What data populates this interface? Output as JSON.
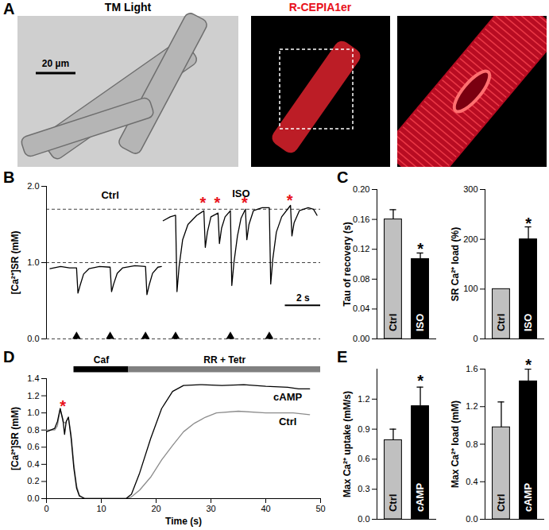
{
  "panel_a": {
    "panel": "A",
    "titles": [
      "TM Light",
      "R-CEPIA1er"
    ],
    "scale_bar": {
      "length": 20,
      "label": "20 µm"
    }
  },
  "chart_data": [
    {
      "panel": "B",
      "type": "line",
      "ylabel": "[Ca²⁺]SR (mM)",
      "xlim": [
        0,
        15.5
      ],
      "ylim": [
        0,
        2
      ],
      "yticks": [
        {
          "value": 0,
          "label": "0.0"
        },
        {
          "value": 1,
          "label": "1.0"
        },
        {
          "value": 2,
          "label": "2.0"
        }
      ],
      "tick_labels": "y",
      "series": [
        {
          "name": "Ctrl",
          "color": "#000000",
          "x": [
            0.2,
            0.8,
            1.3,
            1.7,
            1.78,
            1.9,
            2.1,
            2.4,
            3.0,
            3.6,
            3.68,
            3.8,
            4.0,
            4.3,
            5.0,
            5.6,
            5.68,
            5.8,
            6.0,
            6.3,
            6.5
          ],
          "values": [
            0.92,
            0.95,
            0.93,
            0.93,
            0.6,
            0.7,
            0.85,
            0.92,
            0.95,
            0.94,
            0.62,
            0.72,
            0.86,
            0.93,
            0.96,
            0.95,
            0.58,
            0.7,
            0.86,
            0.94,
            0.95
          ]
        },
        {
          "name": "ISO",
          "color": "#000000",
          "x": [
            6.6,
            7.0,
            7.3,
            7.38,
            7.5,
            7.7,
            8.0,
            8.5,
            8.9,
            8.98,
            9.1,
            9.3,
            9.7,
            9.78,
            9.9,
            10.1,
            10.4,
            10.48,
            10.6,
            10.8,
            11.0,
            11.25,
            11.33,
            11.45,
            11.7,
            12.2,
            12.6,
            12.68,
            12.8,
            13.0,
            13.3,
            13.8,
            13.88,
            14.0,
            14.3,
            14.8,
            15.1,
            15.3
          ],
          "values": [
            1.55,
            1.6,
            1.62,
            0.62,
            0.95,
            1.3,
            1.5,
            1.62,
            1.68,
            1.2,
            1.4,
            1.6,
            1.65,
            1.25,
            1.45,
            1.6,
            1.68,
            0.7,
            1.0,
            1.35,
            1.58,
            1.7,
            1.3,
            1.5,
            1.68,
            1.72,
            1.72,
            0.72,
            1.05,
            1.4,
            1.6,
            1.75,
            1.35,
            1.52,
            1.68,
            1.72,
            1.7,
            1.62
          ]
        }
      ],
      "reference_lines": [
        0,
        1,
        1.7
      ],
      "stimuli": [
        1.7,
        3.6,
        5.6,
        7.3,
        10.4,
        12.6
      ],
      "annotations": [
        {
          "text": "Ctrl",
          "x": 3.6,
          "y": 1.88,
          "color": "#000000"
        },
        {
          "text": "ISO",
          "x": 11.0,
          "y": 1.9,
          "color": "#000000"
        },
        {
          "text": "*",
          "x": 8.85,
          "y": 1.83,
          "color": "#e8101a"
        },
        {
          "text": "*",
          "x": 9.65,
          "y": 1.83,
          "color": "#e8101a"
        },
        {
          "text": "*",
          "x": 11.2,
          "y": 1.83,
          "color": "#e8101a"
        },
        {
          "text": "*",
          "x": 13.75,
          "y": 1.86,
          "color": "#e8101a"
        }
      ],
      "scale_bar": {
        "length": 2,
        "label": "2 s"
      }
    },
    {
      "panel": "C",
      "type": "bar",
      "ylabel": "Tau of recovery (s)",
      "categories": [
        "Ctrl",
        "ISO"
      ],
      "values": [
        0.16,
        0.107
      ],
      "errors": [
        0.013,
        0.008
      ],
      "colors": [
        "#c0c0c0",
        "#000000"
      ],
      "ylim": [
        0,
        0.2
      ],
      "yticks": [
        {
          "value": 0,
          "label": "0.00"
        },
        {
          "value": 0.04,
          "label": "0.04"
        },
        {
          "value": 0.08,
          "label": "0.08"
        },
        {
          "value": 0.12,
          "label": "0.12"
        },
        {
          "value": 0.16,
          "label": "0.16"
        },
        {
          "value": 0.2,
          "label": "0.20"
        }
      ],
      "tick_labels": "y",
      "annotations": [
        {
          "text": "*",
          "category": "ISO",
          "y": 0.125
        }
      ]
    },
    {
      "type": "bar",
      "ylabel": "SR Ca²⁺ load (%)",
      "categories": [
        "Ctrl",
        "ISO"
      ],
      "values": [
        100,
        200
      ],
      "errors": [
        null,
        25
      ],
      "colors": [
        "#c0c0c0",
        "#000000"
      ],
      "ylim": [
        0,
        300
      ],
      "yticks": [
        0,
        100,
        200,
        300
      ],
      "tick_labels": "y",
      "annotations": [
        {
          "text": "*",
          "category": "ISO",
          "y": 240
        }
      ]
    },
    {
      "panel": "D",
      "type": "line",
      "ylabel": "[Ca²⁺]SR (mM)",
      "xlabel": "Time (s)",
      "xlim": [
        0,
        50
      ],
      "ylim": [
        0,
        1.4
      ],
      "xticks": [
        0,
        10,
        20,
        30,
        40,
        50
      ],
      "yticks": [
        {
          "value": 0,
          "label": "0.0"
        },
        {
          "value": 0.2,
          "label": "0.2"
        },
        {
          "value": 0.4,
          "label": "0.4"
        },
        {
          "value": 0.6,
          "label": "0.6"
        },
        {
          "value": 0.8,
          "label": "0.8"
        },
        {
          "value": 1,
          "label": "1.0"
        },
        {
          "value": 1.2,
          "label": "1.2"
        },
        {
          "value": 1.4,
          "label": "1.4"
        }
      ],
      "series": [
        {
          "name": "Ctrl",
          "color": "#8c8c8c",
          "x": [
            0,
            1.5,
            2,
            2.5,
            3,
            3.5,
            4,
            4.5,
            5,
            5.5,
            6,
            7,
            14.5,
            15.5,
            17,
            19,
            21,
            23,
            25,
            27,
            29,
            31,
            35,
            40,
            45,
            48
          ],
          "values": [
            0.8,
            0.8,
            0.85,
            1.05,
            0.9,
            0.88,
            0.95,
            0.75,
            0.4,
            0.15,
            0.04,
            0,
            0,
            0.02,
            0.1,
            0.25,
            0.45,
            0.62,
            0.78,
            0.88,
            0.95,
            1.0,
            1.02,
            1.0,
            1.0,
            0.98
          ]
        },
        {
          "name": "cAMP",
          "color": "#000000",
          "x": [
            0,
            1.5,
            2,
            2.5,
            3,
            3.3,
            3.6,
            4,
            4.5,
            5,
            5.5,
            6,
            7,
            14.5,
            15.5,
            17,
            19,
            21,
            23,
            25,
            28,
            32,
            36,
            40,
            44,
            46,
            48
          ],
          "values": [
            0.78,
            0.82,
            0.9,
            1.05,
            0.92,
            0.75,
            0.9,
            0.95,
            0.7,
            0.35,
            0.12,
            0.03,
            0,
            0,
            0.05,
            0.3,
            0.7,
            1.05,
            1.25,
            1.32,
            1.33,
            1.32,
            1.33,
            1.31,
            1.3,
            1.28,
            1.28
          ]
        }
      ],
      "protocol": [
        {
          "label": "Caf",
          "start": 5,
          "end": 15,
          "color": "#000000"
        },
        {
          "label": "RR + Tetr",
          "start": 15,
          "end": 50,
          "color": "#808080"
        }
      ],
      "annotations": [
        {
          "text": "*",
          "x": 3.0,
          "y": 1.12,
          "color": "#e8101a"
        },
        {
          "text": "cAMP",
          "x": 44,
          "y": 1.18,
          "color": "#000000"
        },
        {
          "text": "Ctrl",
          "x": 44,
          "y": 0.9,
          "color": "#000000"
        }
      ]
    },
    {
      "panel": "E",
      "type": "bar",
      "ylabel": "Max Ca²⁺ uptake (mM/s)",
      "categories": [
        "Ctrl",
        "cAMP"
      ],
      "values": [
        0.79,
        1.13
      ],
      "errors": [
        0.11,
        0.19
      ],
      "colors": [
        "#c0c0c0",
        "#000000"
      ],
      "ylim": [
        0,
        1.5
      ],
      "yticks": [
        {
          "value": 0,
          "label": "0.0"
        },
        {
          "value": 0.3,
          "label": "0.3"
        },
        {
          "value": 0.6,
          "label": "0.6"
        },
        {
          "value": 0.9,
          "label": "0.9"
        },
        {
          "value": 1.2,
          "label": "1.2"
        }
      ],
      "tick_labels": "y",
      "annotations": [
        {
          "text": "*",
          "category": "cAMP",
          "y": 1.42
        }
      ]
    },
    {
      "type": "bar",
      "ylabel": "Max Ca²⁺ load (mM)",
      "categories": [
        "Ctrl",
        "cAMP"
      ],
      "values": [
        0.98,
        1.47
      ],
      "errors": [
        0.27,
        0.13
      ],
      "colors": [
        "#c0c0c0",
        "#000000"
      ],
      "ylim": [
        0,
        1.6
      ],
      "yticks": [
        {
          "value": 0,
          "label": "0.0"
        },
        {
          "value": 0.4,
          "label": "0.4"
        },
        {
          "value": 0.8,
          "label": "0.8"
        },
        {
          "value": 1.2,
          "label": "1.2"
        },
        {
          "value": 1.6,
          "label": "1.6"
        }
      ],
      "tick_labels": "y",
      "annotations": [
        {
          "text": "*",
          "category": "cAMP",
          "y": 1.68
        }
      ]
    }
  ]
}
